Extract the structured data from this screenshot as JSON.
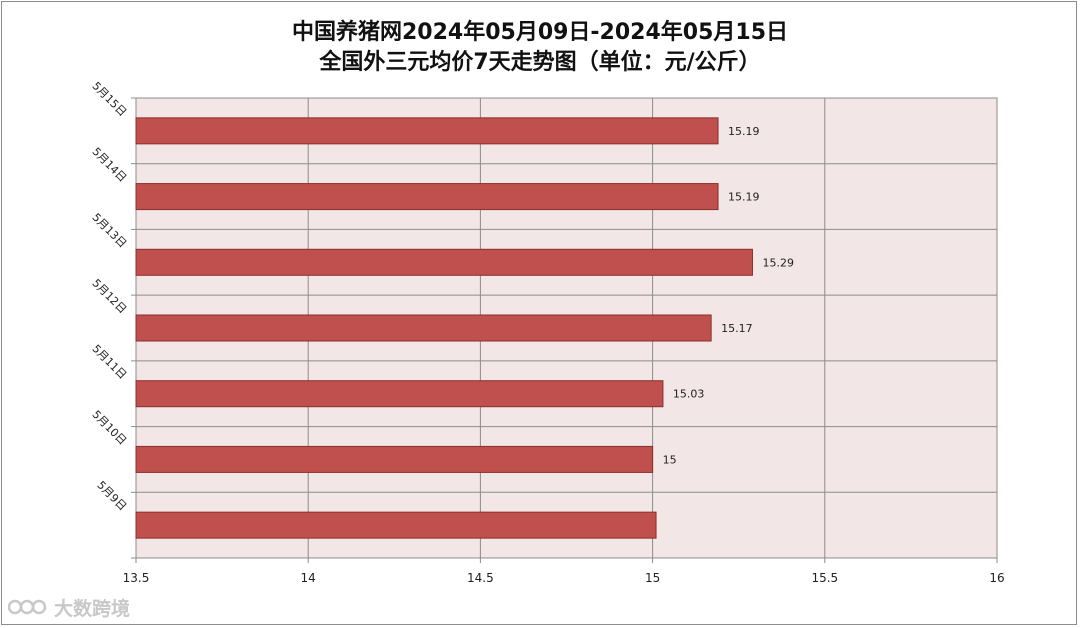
{
  "chart_data": {
    "type": "bar",
    "orientation": "horizontal",
    "title_line1": "中国养猪网2024年05月09日-2024年05月15日",
    "title_line2": "全国外三元均价7天走势图（单位：元/公斤）",
    "categories": [
      "5月15日",
      "5月14日",
      "5月13日",
      "5月12日",
      "5月11日",
      "5月10日",
      "5月9日"
    ],
    "values": [
      15.19,
      15.19,
      15.29,
      15.17,
      15.03,
      15,
      15.01
    ],
    "data_labels": [
      "15.19",
      "15.19",
      "15.29",
      "15.17",
      "15.03",
      "15",
      ""
    ],
    "x_ticks": [
      "13.5",
      "14",
      "14.5",
      "15",
      "15.5",
      "16"
    ],
    "xlim": [
      13.5,
      16
    ],
    "grid": true,
    "legend": "none",
    "colors": {
      "bar_fill": "#c0504d",
      "bar_stroke": "#8b2e2b",
      "plot_bg": "#f2e6e6",
      "grid": "#8c8c8c"
    }
  },
  "watermark": {
    "text": "大数跨境"
  }
}
